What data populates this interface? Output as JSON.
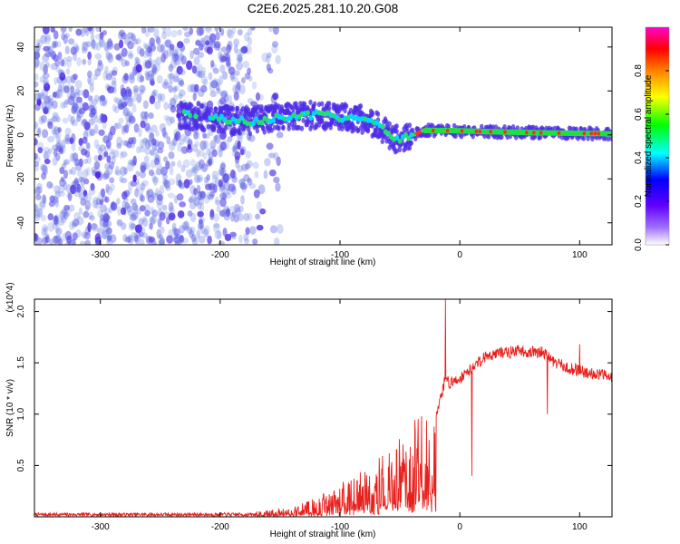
{
  "page": {
    "title": "C2E6.2025.281.10.20.G08"
  },
  "colors": {
    "snr_line": "#e8201c",
    "spectrogram_low": "#7a1fe0",
    "spectrogram_high": "#ff0000",
    "axis": "#000000",
    "background": "#ffffff"
  },
  "chart_data": [
    {
      "type": "heatmap",
      "name": "spectrogram",
      "title": "C2E6.2025.281.10.20.G08",
      "xlabel": "Height of straight line (km)",
      "ylabel": "Frequency (Hz)",
      "xlim": [
        -355,
        127
      ],
      "ylim": [
        -50,
        49
      ],
      "xticks": [
        -300,
        -200,
        -100,
        0,
        100
      ],
      "yticks": [
        -40,
        -20,
        0,
        20,
        40
      ],
      "grid": false,
      "colorbar": {
        "label": "Normalized spectral amplitude",
        "range": [
          0,
          1
        ],
        "ticks": [
          0.0,
          0.2,
          0.4,
          0.6,
          0.8
        ],
        "colormap": [
          "#ff00cc",
          "#ff0000",
          "#ff8000",
          "#ffff00",
          "#00ff00",
          "#00ffff",
          "#0000ff",
          "#8000ff",
          "#ffffff"
        ]
      },
      "center_frequency_track": [
        {
          "x": -230,
          "y": 9
        },
        {
          "x": -210,
          "y": 8
        },
        {
          "x": -180,
          "y": 6
        },
        {
          "x": -150,
          "y": 8
        },
        {
          "x": -120,
          "y": 9
        },
        {
          "x": -100,
          "y": 8
        },
        {
          "x": -80,
          "y": 7
        },
        {
          "x": -65,
          "y": 3
        },
        {
          "x": -55,
          "y": -2
        },
        {
          "x": -45,
          "y": -1
        },
        {
          "x": -30,
          "y": 2
        },
        {
          "x": -10,
          "y": 2
        },
        {
          "x": 20,
          "y": 1.5
        },
        {
          "x": 60,
          "y": 1
        },
        {
          "x": 127,
          "y": 0.5
        }
      ]
    },
    {
      "type": "line",
      "name": "snr",
      "xlabel": "Height of straight line (km)",
      "ylabel": "SNR (10 * v/v)",
      "ylabel_multiplier": "(x10^4)",
      "xlim": [
        -355,
        127
      ],
      "ylim": [
        0,
        2.12
      ],
      "xticks": [
        -300,
        -200,
        -100,
        0,
        100
      ],
      "yticks": [
        0.5,
        1.0,
        1.5,
        2.0
      ],
      "grid": false,
      "series": [
        {
          "x": [
            -355,
            -300,
            -250,
            -200,
            -160,
            -140,
            -120,
            -100,
            -80,
            -60,
            -45,
            -30,
            -20,
            -15,
            -12,
            -8,
            0,
            10,
            20,
            30,
            40,
            50,
            60,
            70,
            75,
            80,
            90,
            100,
            110,
            120,
            127
          ],
          "y": [
            0.02,
            0.03,
            0.03,
            0.03,
            0.05,
            0.08,
            0.15,
            0.25,
            0.35,
            0.5,
            0.65,
            0.85,
            1.0,
            1.2,
            1.35,
            1.3,
            1.35,
            1.45,
            1.55,
            1.6,
            1.6,
            1.62,
            1.6,
            1.6,
            1.55,
            1.5,
            1.45,
            1.42,
            1.4,
            1.38,
            1.38
          ]
        }
      ],
      "annotations": [
        {
          "x": -12,
          "y": 2.12,
          "note": "spike"
        },
        {
          "x": 100,
          "y": 1.65,
          "note": "spike"
        }
      ]
    }
  ]
}
